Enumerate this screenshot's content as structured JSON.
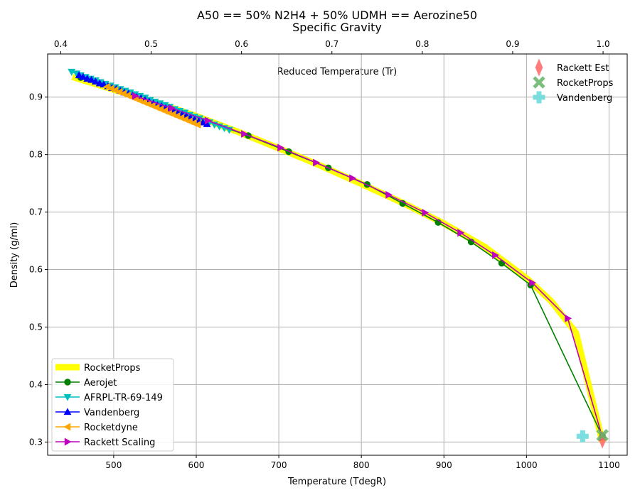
{
  "chart_data": {
    "type": "line",
    "title_line1": "A50 == 50% N2H4 + 50% UDMH == Aerozine50",
    "title_line2": "Specific Gravity",
    "xlabel": "Temperature (TdegR)",
    "ylabel": "Density (g/ml)",
    "top_axis_annotation": "Reduced Temperature (Tr)",
    "xlim": [
      420,
      1122
    ],
    "ylim": [
      0.277,
      0.975
    ],
    "xticks": [
      500,
      600,
      700,
      800,
      900,
      1000,
      1100
    ],
    "yticks": [
      0.3,
      0.4,
      0.5,
      0.6,
      0.7,
      0.8,
      0.9
    ],
    "top_xlim": [
      0.3855,
      1.0267
    ],
    "top_ticks": [
      0.4,
      0.5,
      0.6,
      0.7,
      0.8,
      0.9,
      1.0
    ],
    "grid": true,
    "legend_bottom": [
      "RocketProps",
      "Aerojet",
      "AFRPL-TR-69-149",
      "Vandenberg",
      "Rocketdyne",
      "Rackett Scaling"
    ],
    "legend_top": [
      "Rackett Est",
      "RocketProps",
      "Vandenberg"
    ],
    "series": [
      {
        "name": "RocketProps",
        "color": "#ffff00",
        "style": "thick-line",
        "x": [
          450,
          500,
          550,
          600,
          650,
          700,
          750,
          800,
          850,
          900,
          950,
          1000,
          1030,
          1060,
          1092
        ],
        "y": [
          0.935,
          0.913,
          0.891,
          0.867,
          0.84,
          0.811,
          0.781,
          0.749,
          0.716,
          0.68,
          0.639,
          0.585,
          0.545,
          0.49,
          0.3
        ]
      },
      {
        "name": "Aerojet",
        "color": "#008000",
        "marker": "circle",
        "x": [
          460,
          663,
          712,
          760,
          807,
          850,
          893,
          933,
          970,
          1005,
          1092
        ],
        "y": [
          0.934,
          0.833,
          0.805,
          0.777,
          0.748,
          0.715,
          0.682,
          0.648,
          0.611,
          0.573,
          0.31
        ]
      },
      {
        "name": "AFRPL-TR-69-149",
        "color": "#00bfbf",
        "marker": "triangle-down",
        "x": [
          449,
          455,
          460,
          466,
          472,
          478,
          484,
          490,
          496,
          502,
          508,
          514,
          520,
          526,
          532,
          538,
          544,
          550,
          556,
          562,
          568,
          574,
          580,
          586,
          592,
          598,
          604,
          610,
          616,
          622,
          628,
          634,
          640
        ],
        "y": [
          0.944,
          0.941,
          0.938,
          0.935,
          0.932,
          0.929,
          0.926,
          0.923,
          0.92,
          0.917,
          0.914,
          0.911,
          0.908,
          0.905,
          0.902,
          0.899,
          0.895,
          0.892,
          0.889,
          0.886,
          0.883,
          0.879,
          0.876,
          0.873,
          0.869,
          0.866,
          0.863,
          0.859,
          0.856,
          0.852,
          0.849,
          0.846,
          0.843
        ]
      },
      {
        "name": "Vandenberg",
        "color": "#0000ff",
        "marker": "triangle-up",
        "x": [
          458,
          463,
          468,
          473,
          478,
          483,
          488,
          493,
          498,
          503,
          508,
          513,
          518,
          523,
          528,
          533,
          538,
          543,
          548,
          553,
          558,
          563,
          568,
          573,
          578,
          583,
          588,
          593,
          598,
          603,
          608,
          613
        ],
        "y": [
          0.938,
          0.935,
          0.932,
          0.93,
          0.927,
          0.924,
          0.922,
          0.919,
          0.916,
          0.914,
          0.911,
          0.908,
          0.906,
          0.903,
          0.9,
          0.898,
          0.895,
          0.892,
          0.889,
          0.886,
          0.884,
          0.881,
          0.878,
          0.875,
          0.872,
          0.87,
          0.867,
          0.864,
          0.861,
          0.858,
          0.856,
          0.853
        ]
      },
      {
        "name": "Rocketdyne",
        "color": "#ffa500",
        "marker": "triangle-left",
        "x": [
          492,
          497,
          502,
          507,
          512,
          517,
          522,
          527,
          532,
          537,
          542,
          547,
          552,
          557,
          562,
          567,
          572,
          577,
          582,
          587,
          592,
          597,
          602
        ],
        "y": [
          0.918,
          0.915,
          0.912,
          0.909,
          0.906,
          0.903,
          0.9,
          0.897,
          0.894,
          0.891,
          0.888,
          0.885,
          0.882,
          0.879,
          0.876,
          0.873,
          0.87,
          0.867,
          0.864,
          0.861,
          0.858,
          0.855,
          0.852
        ]
      },
      {
        "name": "Rackett Scaling",
        "color": "#bf00bf",
        "marker": "triangle-right",
        "x": [
          526,
          570,
          614,
          658,
          702,
          745,
          789,
          833,
          877,
          920,
          962,
          1007,
          1050,
          1092
        ],
        "y": [
          0.902,
          0.881,
          0.859,
          0.836,
          0.812,
          0.786,
          0.759,
          0.73,
          0.699,
          0.664,
          0.625,
          0.577,
          0.515,
          0.308
        ]
      }
    ],
    "critical_points": [
      {
        "name": "Rackett Est",
        "color": "#ff6666",
        "marker": "thin-diamond",
        "x": 1092,
        "y": 0.304
      },
      {
        "name": "RocketProps",
        "color": "#66b366",
        "marker": "x-filled",
        "x": 1092,
        "y": 0.312
      },
      {
        "name": "Vandenberg",
        "color": "#66d9d9",
        "marker": "plus-filled",
        "x": 1068,
        "y": 0.31
      }
    ]
  }
}
